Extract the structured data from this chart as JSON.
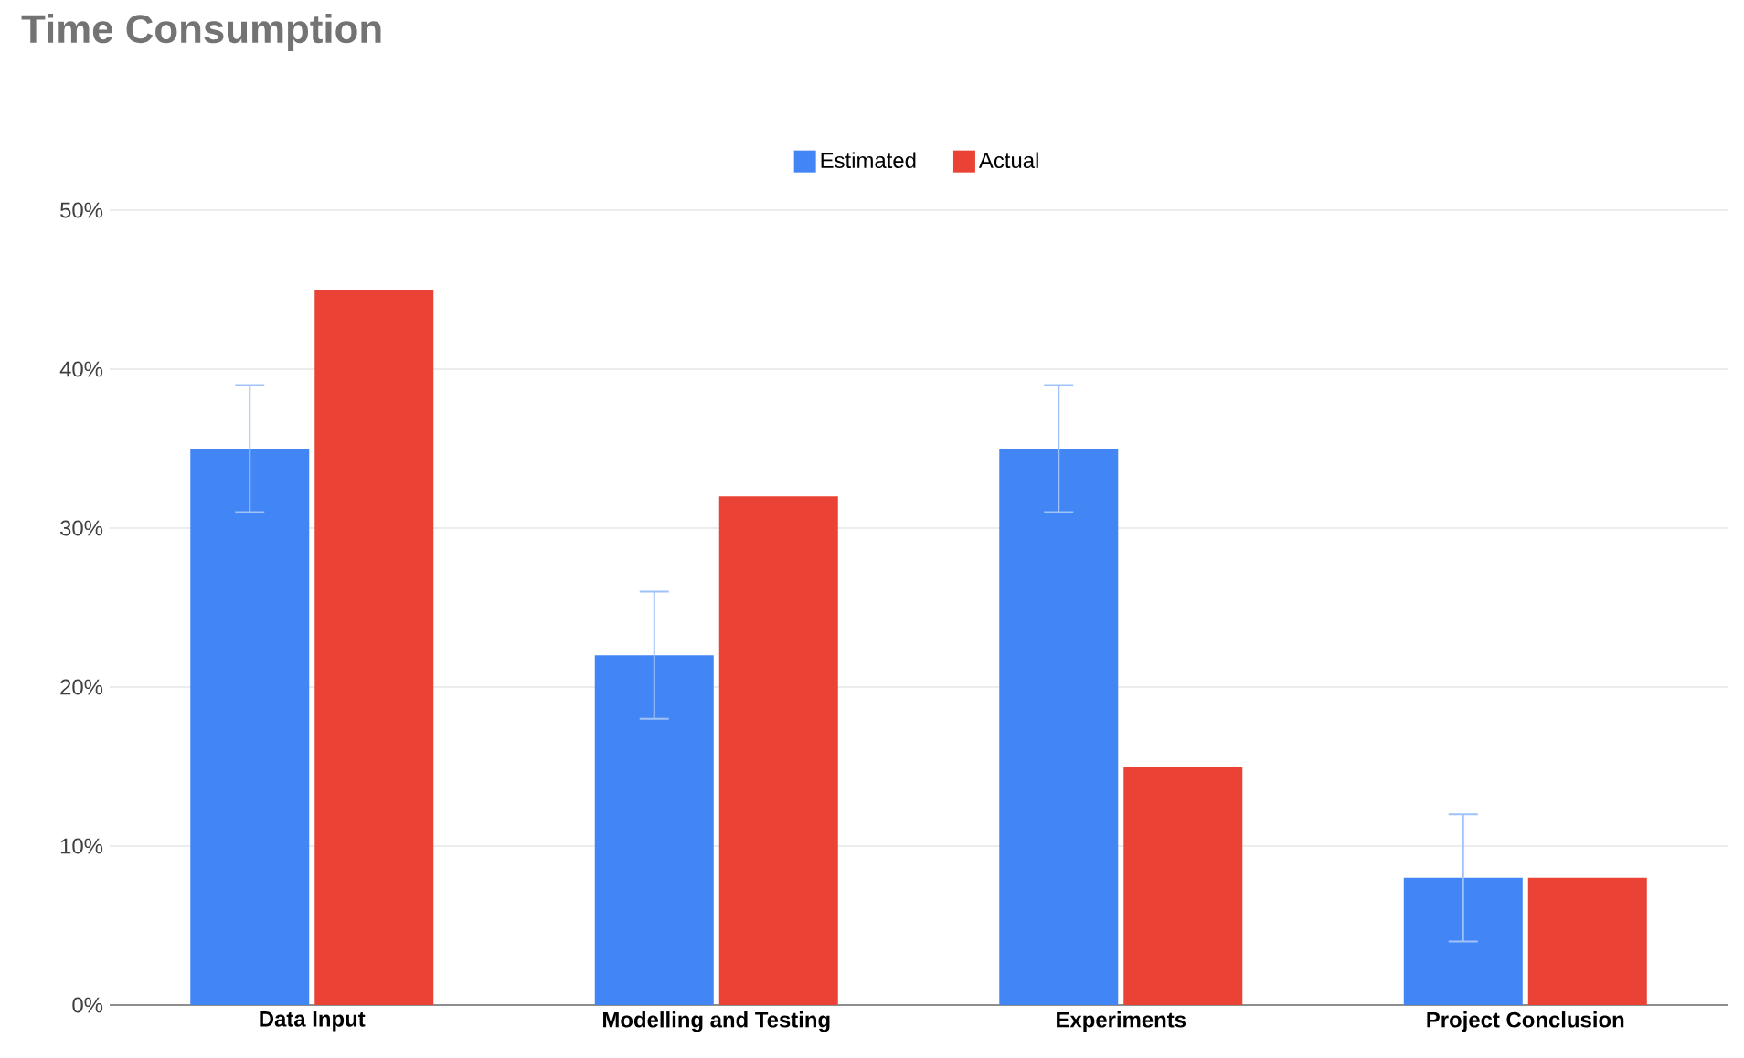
{
  "chart_data": {
    "type": "bar",
    "title": "Time Consumption",
    "categories": [
      "Data Input",
      "Modelling and Testing",
      "Experiments",
      "Project Conclusion"
    ],
    "series": [
      {
        "name": "Estimated",
        "color": "#4285f4",
        "values": [
          35,
          22,
          35,
          8
        ],
        "errors": [
          4,
          4,
          4,
          4
        ]
      },
      {
        "name": "Actual",
        "color": "#ea4335",
        "values": [
          45,
          32,
          15,
          8
        ]
      }
    ],
    "ylim": [
      0,
      50
    ],
    "yticks": [
      {
        "value": 0,
        "label": "0%"
      },
      {
        "value": 10,
        "label": "10%"
      },
      {
        "value": 20,
        "label": "20%"
      },
      {
        "value": 30,
        "label": "30%"
      },
      {
        "value": 40,
        "label": "40%"
      },
      {
        "value": 50,
        "label": "50%"
      }
    ],
    "grid": "y",
    "legend": "top"
  }
}
